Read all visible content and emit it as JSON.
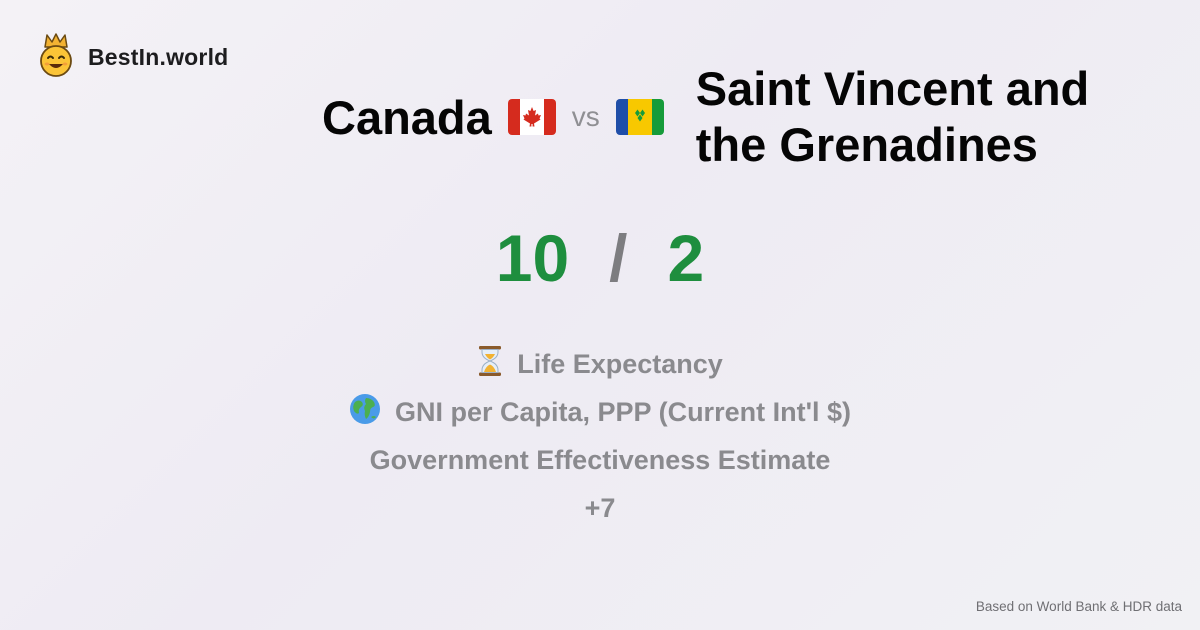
{
  "brand": {
    "name": "BestIn.world",
    "logo_icon": "crowned-smiley-icon"
  },
  "comparison": {
    "country_a": "Canada",
    "country_a_flag_icon": "canada-flag-icon",
    "vs_label": "vs",
    "country_b": "Saint Vincent and the Grenadines",
    "country_b_flag_icon": "saint-vincent-flag-icon"
  },
  "score": {
    "a": "10",
    "separator": "/",
    "b": "2"
  },
  "metrics": [
    {
      "icon": "hourglass-icon",
      "label": "Life Expectancy"
    },
    {
      "icon": "globe-icon",
      "label": "GNI per Capita, PPP (Current Int'l $)"
    },
    {
      "icon": "",
      "label": "Government Effectiveness Estimate"
    }
  ],
  "more_label": "+7",
  "footer": {
    "source": "Based on World Bank & HDR data"
  },
  "colors": {
    "score_green": "#1e8e3e",
    "muted_gray": "#8a8a8e"
  }
}
